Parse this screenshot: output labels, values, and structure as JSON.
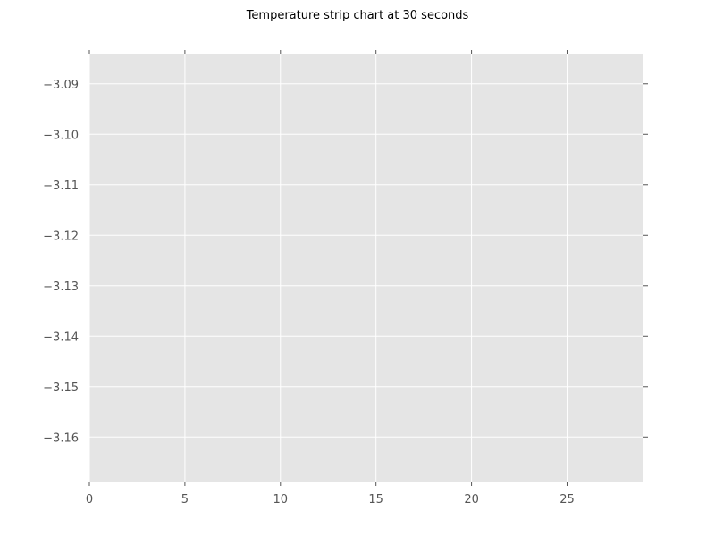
{
  "chart_data": {
    "type": "line",
    "title": "Temperature strip chart at 30 seconds",
    "xlabel": "",
    "ylabel": "",
    "xlim": [
      0,
      29
    ],
    "ylim": [
      -3.1688,
      -3.0842
    ],
    "x_ticks": [
      0,
      5,
      10,
      15,
      20,
      25
    ],
    "y_ticks": [
      -3.09,
      -3.1,
      -3.11,
      -3.12,
      -3.13,
      -3.14,
      -3.15,
      -3.16
    ],
    "x_tick_labels": [
      "0",
      "5",
      "10",
      "15",
      "20",
      "25"
    ],
    "y_tick_labels": [
      "−3.09",
      "−3.10",
      "−3.11",
      "−3.12",
      "−3.13",
      "−3.14",
      "−3.15",
      "−3.16"
    ],
    "series": [],
    "grid": true,
    "legend": "none",
    "colors": {
      "plot_background": "#e5e5e5",
      "grid": "#ffffff",
      "tick_label": "#555555",
      "tick_mark": "#555555"
    }
  }
}
